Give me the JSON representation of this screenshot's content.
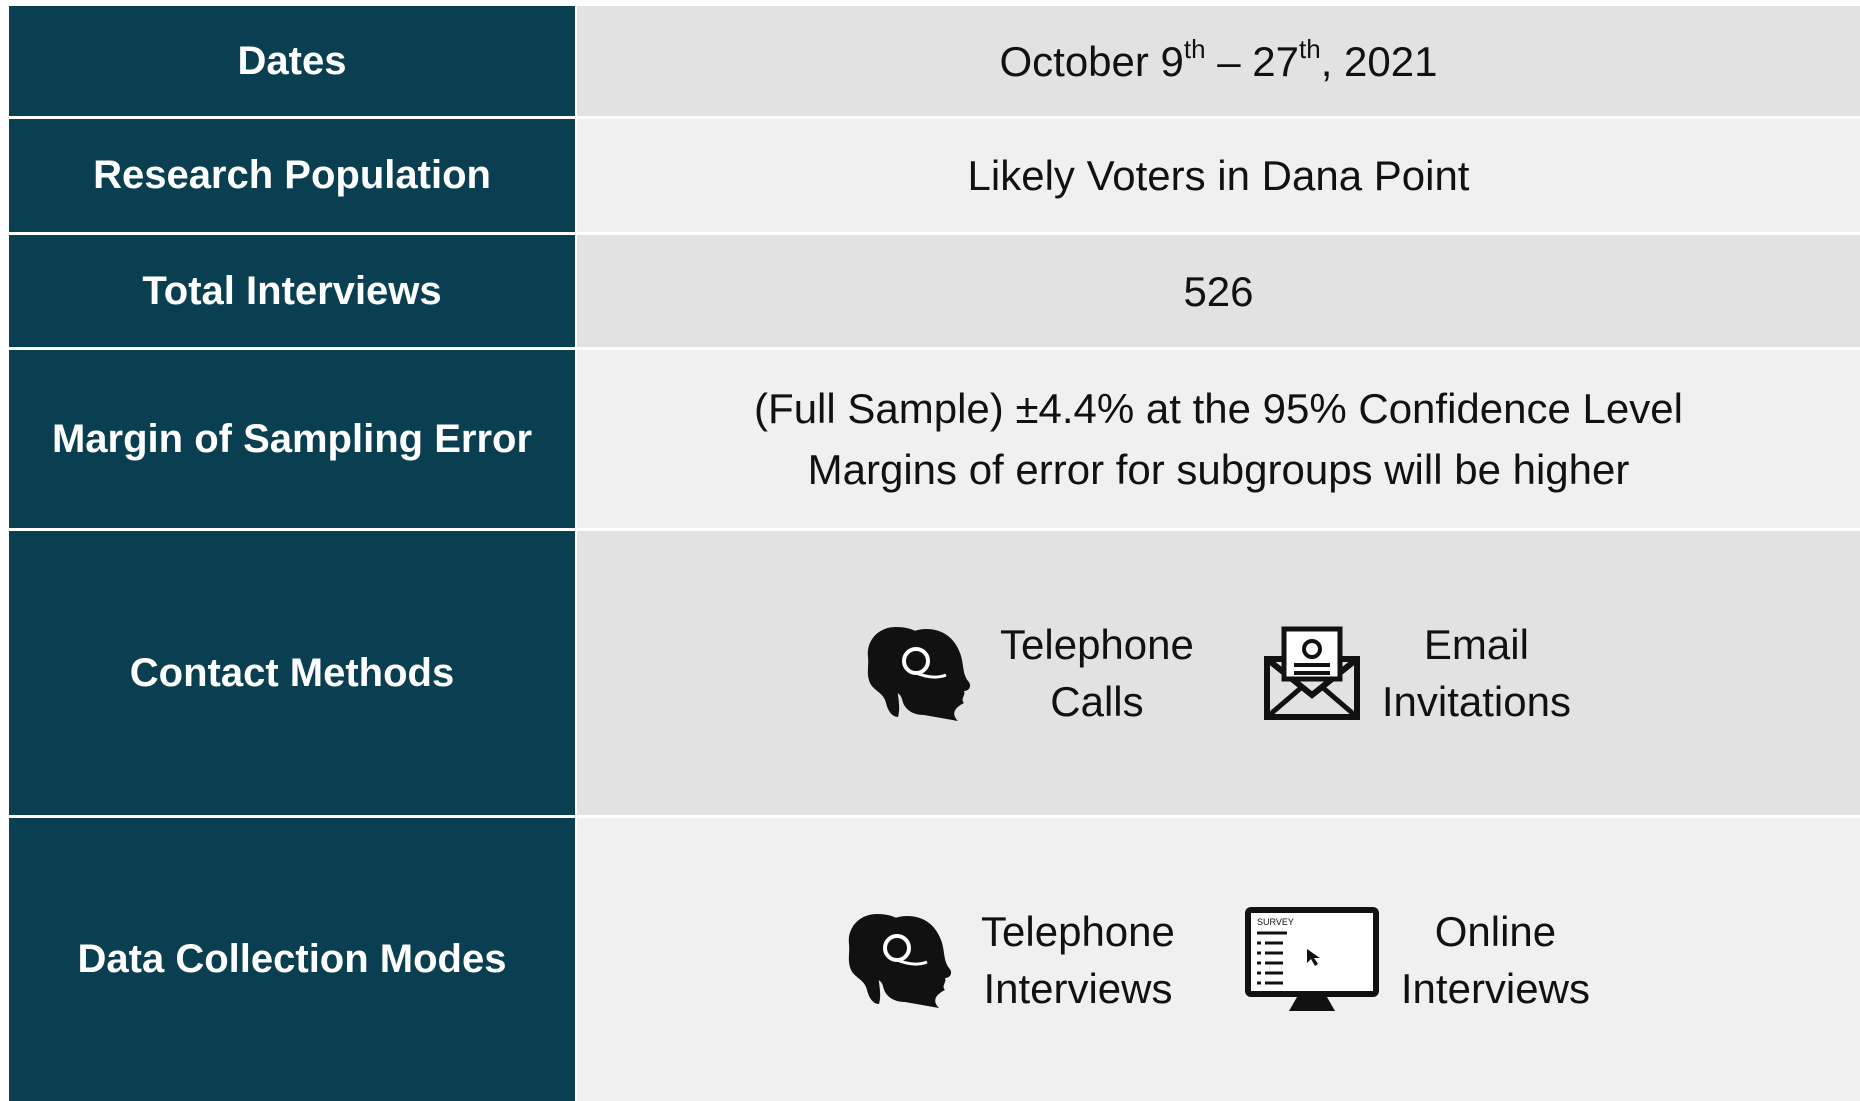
{
  "rows": [
    {
      "label": "Dates",
      "value": [
        "October 9",
        "th",
        " – 27",
        "th",
        ", 2021"
      ]
    },
    {
      "label": "Research Population",
      "value": [
        "Likely Voters in Dana Point"
      ]
    },
    {
      "label": "Total Interviews",
      "value": [
        "526"
      ]
    },
    {
      "label": "Margin of Sampling Error",
      "value": [
        "(Full Sample) ±4.4% at the 95% Confidence Level",
        "Margins of error for subgroups will be higher"
      ]
    },
    {
      "label": "Contact Methods",
      "items": [
        {
          "lines": [
            "Telephone",
            "Calls"
          ]
        },
        {
          "lines": [
            "Email",
            "Invitations"
          ]
        }
      ]
    },
    {
      "label": "Data Collection Modes",
      "items": [
        {
          "lines": [
            "Telephone",
            "Interviews"
          ]
        },
        {
          "lines": [
            "Online",
            "Interviews"
          ],
          "icon_text": "SURVEY"
        }
      ]
    }
  ]
}
